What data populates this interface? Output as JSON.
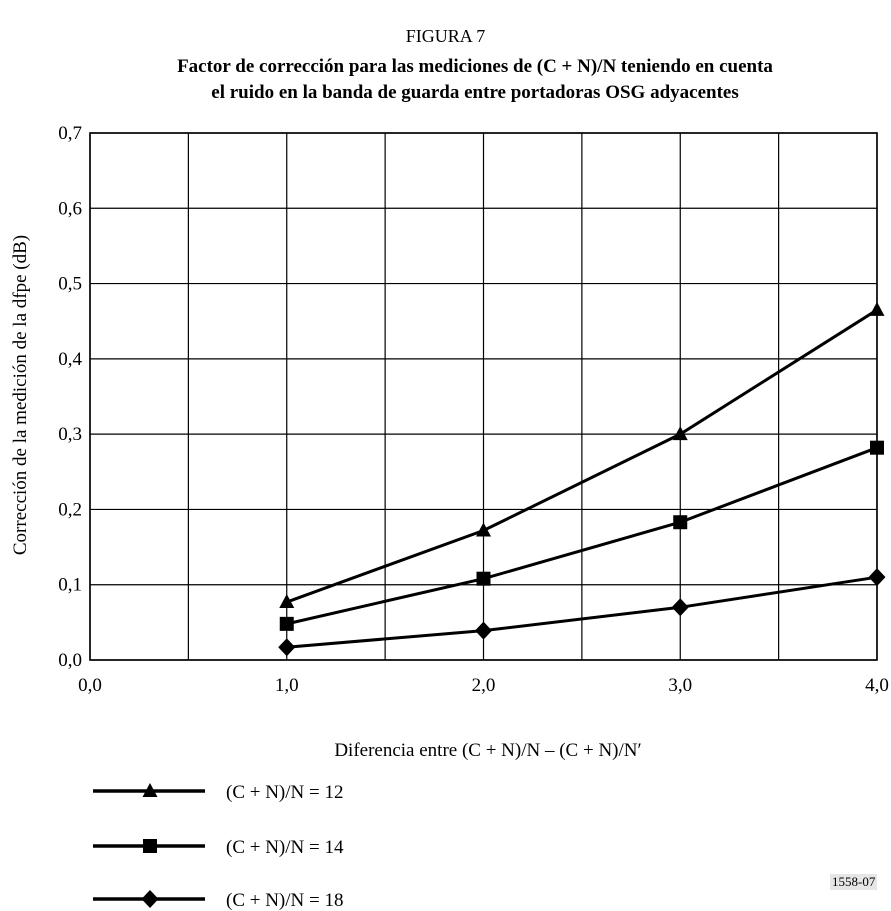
{
  "figure": {
    "label": "FIGURA 7",
    "id": "1558-07"
  },
  "chart_data": {
    "type": "line",
    "title_line1": "Factor de corrección para las mediciones de (C + N)/N  teniendo en cuenta",
    "title_line2": "el ruido en la banda de guarda entre portadoras OSG adyacentes",
    "xlabel": "Diferencia entre (C + N)/N – (C + N)/N′",
    "ylabel": "Corrección de la medición de la dfpe (dB)",
    "xlim": [
      0,
      4
    ],
    "ylim": [
      0,
      0.7
    ],
    "x_ticks": [
      "0,0",
      "1,0",
      "2,0",
      "3,0",
      "4,0"
    ],
    "y_ticks": [
      "0,0",
      "0,1",
      "0,2",
      "0,3",
      "0,4",
      "0,5",
      "0,6",
      "0,7"
    ],
    "grid": true,
    "legend_position": "bottom-left",
    "series": [
      {
        "name": "(C + N)/N = 12",
        "marker": "triangle",
        "x": [
          1,
          2,
          3,
          4
        ],
        "y": [
          0.077,
          0.172,
          0.3,
          0.465
        ]
      },
      {
        "name": "(C + N)/N = 14",
        "marker": "square",
        "x": [
          1,
          2,
          3,
          4
        ],
        "y": [
          0.048,
          0.108,
          0.183,
          0.282
        ]
      },
      {
        "name": "(C + N)/N = 18",
        "marker": "diamond",
        "x": [
          1,
          2,
          3,
          4
        ],
        "y": [
          0.017,
          0.039,
          0.07,
          0.11
        ]
      }
    ]
  }
}
